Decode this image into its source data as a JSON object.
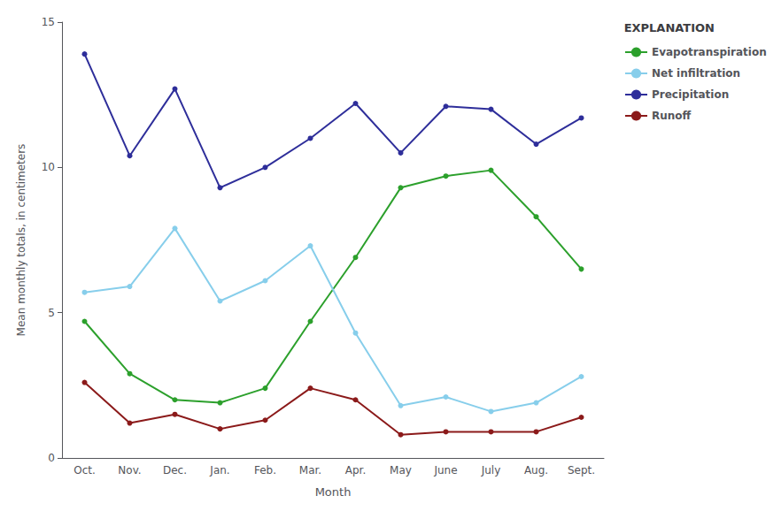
{
  "chart_data": {
    "type": "line",
    "categories": [
      "Oct.",
      "Nov.",
      "Dec.",
      "Jan.",
      "Feb.",
      "Mar.",
      "Apr.",
      "May",
      "June",
      "July",
      "Aug.",
      "Sept."
    ],
    "series": [
      {
        "name": "Evapotranspiration",
        "color": "#2ca02c",
        "marker": "circle",
        "values": [
          4.7,
          2.9,
          2.0,
          1.9,
          2.4,
          4.7,
          6.9,
          9.3,
          9.7,
          9.9,
          8.3,
          6.5
        ]
      },
      {
        "name": "Net infiltration",
        "color": "#87ceeb",
        "marker": "circle",
        "values": [
          5.7,
          5.9,
          7.9,
          5.4,
          6.1,
          7.3,
          4.3,
          1.8,
          2.1,
          1.6,
          1.9,
          2.8
        ]
      },
      {
        "name": "Precipitation",
        "color": "#2e2e9a",
        "marker": "circle",
        "values": [
          13.9,
          10.4,
          12.7,
          9.3,
          10.0,
          11.0,
          12.2,
          10.5,
          12.1,
          12.0,
          10.8,
          11.7
        ]
      },
      {
        "name": "Runoff",
        "color": "#8b1a1a",
        "marker": "circle",
        "values": [
          2.6,
          1.2,
          1.5,
          1.0,
          1.3,
          2.4,
          2.0,
          0.8,
          0.9,
          0.9,
          0.9,
          1.4
        ]
      }
    ],
    "xlabel": "Month",
    "ylabel": "Mean monthly totals, in centimeters",
    "ylim": [
      0,
      15
    ],
    "yticks": [
      0,
      5,
      10,
      15
    ],
    "grid": false,
    "legend": "right",
    "legend_title": "EXPLANATION"
  }
}
